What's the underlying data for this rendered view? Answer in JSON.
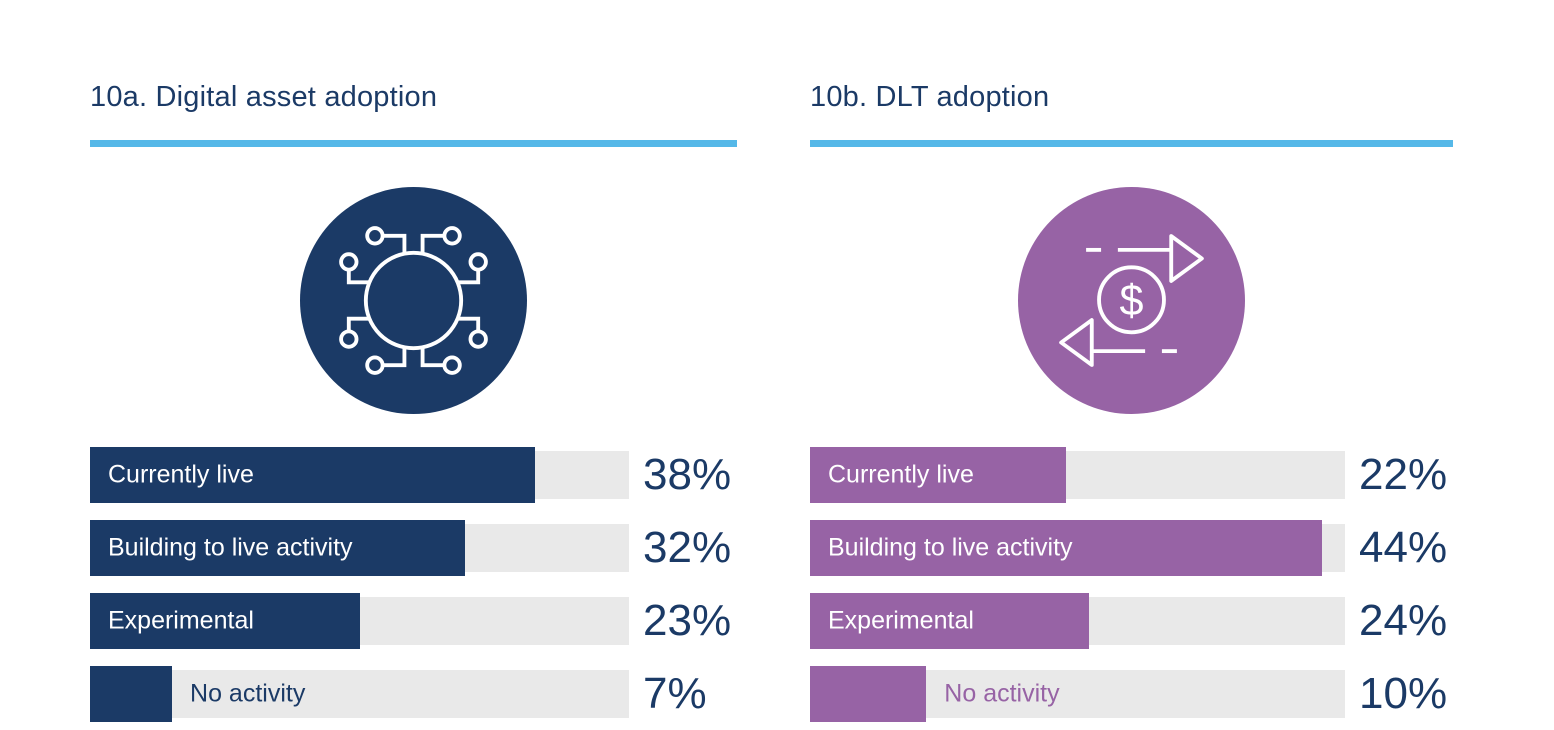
{
  "style": {
    "background": "#ffffff",
    "text_navy": "#1b3a66",
    "accent_underline": "#55b8e8",
    "bar_label_white": "#ffffff"
  },
  "chart_data": [
    {
      "type": "bar",
      "orientation": "horizontal",
      "title": "10a. Digital asset adoption",
      "icon": "network-nodes-icon",
      "categories": [
        "Currently live",
        "Building to live activity",
        "Experimental",
        "No activity"
      ],
      "values": [
        38,
        32,
        23,
        7
      ],
      "value_labels": [
        "38%",
        "32%",
        "23%",
        "7%"
      ],
      "unit": "%",
      "xlim": [
        0,
        46
      ],
      "grid": false,
      "legend": "none",
      "bar_color": "#1b3a66",
      "track_color": "#e9e9e9",
      "label_inside": [
        true,
        true,
        true,
        false
      ]
    },
    {
      "type": "bar",
      "orientation": "horizontal",
      "title": "10b. DLT adoption",
      "icon": "currency-exchange-icon",
      "icon_text": "$",
      "categories": [
        "Currently live",
        "Building to live activity",
        "Experimental",
        "No activity"
      ],
      "values": [
        22,
        44,
        24,
        10
      ],
      "value_labels": [
        "22%",
        "44%",
        "24%",
        "10%"
      ],
      "unit": "%",
      "xlim": [
        0,
        46
      ],
      "grid": false,
      "legend": "none",
      "bar_color": "#9763a5",
      "track_color": "#e9e9e9",
      "label_inside": [
        true,
        true,
        true,
        false
      ]
    }
  ]
}
